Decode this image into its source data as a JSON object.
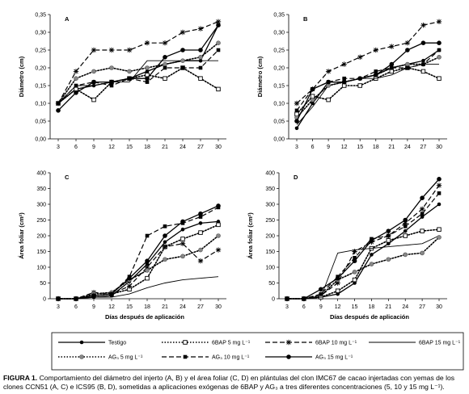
{
  "colors": {
    "ink": "#000000",
    "legend_border": "#000000",
    "background": "#ffffff"
  },
  "chart_data": [
    {
      "panel": "A",
      "type": "line",
      "xlabel": "",
      "ylabel": "Diámetro (cm)",
      "ylim": [
        0,
        0.35
      ],
      "yticks": [
        "0,00",
        "0,05",
        "0,10",
        "0,15",
        "0,20",
        "0,25",
        "0,30",
        "0,35"
      ],
      "categories": [
        "3",
        "6",
        "9",
        "12",
        "15",
        "18",
        "21",
        "24",
        "27",
        "30"
      ],
      "grid": false,
      "series": [
        {
          "name": "Testigo",
          "style": "solid-dot",
          "values": [
            0.1,
            0.14,
            0.15,
            0.16,
            0.17,
            0.19,
            0.21,
            0.22,
            0.22,
            0.32
          ]
        },
        {
          "name": "6BAP 5 mg L⁻¹",
          "style": "dotted-opensquare",
          "values": [
            0.1,
            0.14,
            0.11,
            0.16,
            0.17,
            0.18,
            0.17,
            0.2,
            0.17,
            0.14
          ]
        },
        {
          "name": "6BAP 10 mg L⁻¹",
          "style": "dashed-star",
          "values": [
            0.1,
            0.19,
            0.25,
            0.25,
            0.25,
            0.27,
            0.27,
            0.3,
            0.31,
            0.33
          ]
        },
        {
          "name": "6BAP 15 mg L⁻¹",
          "style": "thin-solid",
          "values": [
            0.1,
            0.15,
            0.15,
            0.16,
            0.16,
            0.22,
            0.22,
            0.22,
            0.22,
            0.22
          ]
        },
        {
          "name": "AG3 5 mg L⁻¹",
          "style": "dotted-graydot",
          "values": [
            0.1,
            0.17,
            0.19,
            0.2,
            0.19,
            0.2,
            0.21,
            0.22,
            0.23,
            0.27
          ]
        },
        {
          "name": "AG3 10 mg L⁻¹",
          "style": "dashed-square",
          "values": [
            0.1,
            0.15,
            0.16,
            0.15,
            0.17,
            0.16,
            0.2,
            0.2,
            0.2,
            0.25
          ]
        },
        {
          "name": "AG3 15 mg L⁻¹",
          "style": "solid-bigdot",
          "values": [
            0.08,
            0.13,
            0.16,
            0.16,
            0.17,
            0.17,
            0.23,
            0.25,
            0.25,
            0.32
          ]
        }
      ]
    },
    {
      "panel": "B",
      "type": "line",
      "xlabel": "",
      "ylabel": "Diámetro (cm)",
      "ylim": [
        0,
        0.35
      ],
      "yticks": [
        "0,00",
        "0,05",
        "0,10",
        "0,15",
        "0,20",
        "0,25",
        "0,30",
        "0,35"
      ],
      "categories": [
        "3",
        "6",
        "9",
        "12",
        "15",
        "18",
        "21",
        "24",
        "27",
        "30"
      ],
      "grid": false,
      "series": [
        {
          "name": "Testigo",
          "style": "solid-dot",
          "values": [
            0.03,
            0.1,
            0.16,
            0.16,
            0.17,
            0.18,
            0.2,
            0.21,
            0.22,
            0.25
          ]
        },
        {
          "name": "6BAP 5 mg L⁻¹",
          "style": "dotted-opensquare",
          "values": [
            0.07,
            0.12,
            0.11,
            0.15,
            0.15,
            0.17,
            0.19,
            0.2,
            0.19,
            0.17
          ]
        },
        {
          "name": "6BAP 10 mg L⁻¹",
          "style": "dashed-star",
          "values": [
            0.1,
            0.14,
            0.19,
            0.21,
            0.23,
            0.25,
            0.26,
            0.27,
            0.32,
            0.33
          ]
        },
        {
          "name": "6BAP 15 mg L⁻¹",
          "style": "thin-solid",
          "values": [
            0.04,
            0.09,
            0.15,
            0.16,
            0.17,
            0.17,
            0.18,
            0.2,
            0.21,
            0.21
          ]
        },
        {
          "name": "AG3 5 mg L⁻¹",
          "style": "dotted-graydot",
          "values": [
            0.06,
            0.11,
            0.15,
            0.16,
            0.17,
            0.18,
            0.2,
            0.21,
            0.21,
            0.23
          ]
        },
        {
          "name": "AG3 10 mg L⁻¹",
          "style": "dashed-square",
          "values": [
            0.08,
            0.14,
            0.16,
            0.17,
            0.17,
            0.19,
            0.2,
            0.2,
            0.21,
            0.25
          ]
        },
        {
          "name": "AG3 15 mg L⁻¹",
          "style": "solid-bigdot",
          "values": [
            0.05,
            0.14,
            0.16,
            0.16,
            0.17,
            0.18,
            0.21,
            0.25,
            0.27,
            0.27
          ]
        }
      ]
    },
    {
      "panel": "C",
      "type": "line",
      "xlabel": "Días después de aplicación",
      "ylabel": "Área foliar (cm²)",
      "ylim": [
        0,
        400
      ],
      "yticks": [
        "0",
        "50",
        "100",
        "150",
        "200",
        "250",
        "300",
        "350",
        "400"
      ],
      "categories": [
        "3",
        "6",
        "9",
        "12",
        "15",
        "18",
        "21",
        "24",
        "27",
        "30"
      ],
      "grid": false,
      "series": [
        {
          "name": "Testigo",
          "style": "solid-dot",
          "values": [
            0,
            0,
            5,
            10,
            55,
            110,
            180,
            220,
            240,
            245
          ]
        },
        {
          "name": "6BAP 5 mg L⁻¹",
          "style": "dotted-opensquare",
          "values": [
            0,
            0,
            10,
            15,
            30,
            65,
            165,
            190,
            210,
            235
          ]
        },
        {
          "name": "6BAP 10 mg L⁻¹",
          "style": "dashed-star",
          "values": [
            0,
            0,
            20,
            15,
            40,
            100,
            165,
            175,
            120,
            155
          ]
        },
        {
          "name": "6BAP 15 mg L⁻¹",
          "style": "thin-solid",
          "values": [
            0,
            0,
            5,
            5,
            15,
            35,
            50,
            60,
            65,
            70
          ]
        },
        {
          "name": "AG3 5 mg L⁻¹",
          "style": "dotted-graydot",
          "values": [
            0,
            0,
            15,
            20,
            60,
            90,
            125,
            135,
            155,
            200
          ]
        },
        {
          "name": "AG3 10 mg L⁻¹",
          "style": "dashed-square",
          "values": [
            0,
            0,
            10,
            15,
            70,
            200,
            230,
            240,
            260,
            290
          ]
        },
        {
          "name": "AG3 15 mg L⁻¹",
          "style": "solid-bigdot",
          "values": [
            0,
            0,
            10,
            15,
            65,
            120,
            200,
            245,
            270,
            295
          ]
        }
      ]
    },
    {
      "panel": "D",
      "type": "line",
      "xlabel": "Días después de aplicación",
      "ylabel": "Área foliar (cm²)",
      "ylim": [
        0,
        400
      ],
      "yticks": [
        "0",
        "50",
        "100",
        "150",
        "200",
        "250",
        "300",
        "350",
        "400"
      ],
      "categories": [
        "3",
        "6",
        "9",
        "12",
        "15",
        "18",
        "21",
        "24",
        "27",
        "30"
      ],
      "grid": false,
      "series": [
        {
          "name": "Testigo",
          "style": "solid-dot",
          "values": [
            0,
            0,
            5,
            15,
            50,
            140,
            175,
            215,
            260,
            300
          ]
        },
        {
          "name": "6BAP 5 mg L⁻¹",
          "style": "dotted-opensquare",
          "values": [
            0,
            0,
            5,
            25,
            60,
            160,
            185,
            200,
            215,
            220
          ]
        },
        {
          "name": "6BAP 10 mg L⁻¹",
          "style": "dashed-star",
          "values": [
            0,
            0,
            10,
            50,
            150,
            180,
            200,
            240,
            285,
            360
          ]
        },
        {
          "name": "6BAP 15 mg L⁻¹",
          "style": "thin-solid",
          "values": [
            0,
            0,
            5,
            145,
            155,
            160,
            165,
            170,
            175,
            200
          ]
        },
        {
          "name": "AG3 5 mg L⁻¹",
          "style": "dotted-graydot",
          "values": [
            0,
            0,
            10,
            60,
            85,
            110,
            125,
            140,
            145,
            195
          ]
        },
        {
          "name": "AG3 10 mg L⁻¹",
          "style": "dashed-square",
          "values": [
            0,
            0,
            15,
            70,
            130,
            190,
            200,
            230,
            270,
            335
          ]
        },
        {
          "name": "AG3 15 mg L⁻¹",
          "style": "solid-bigdot",
          "values": [
            0,
            0,
            30,
            65,
            120,
            185,
            215,
            250,
            320,
            380
          ]
        }
      ]
    }
  ],
  "legend": [
    {
      "label": "Testigo",
      "style": "solid-dot"
    },
    {
      "label": "6BAP 5 mg L⁻¹",
      "style": "dotted-opensquare"
    },
    {
      "label": "6BAP 10 mg L⁻¹",
      "style": "dashed-star"
    },
    {
      "label": "6BAP 15 mg L⁻¹",
      "style": "thin-solid"
    },
    {
      "label": "AG₃ 5 mg L⁻¹",
      "style": "dotted-graydot"
    },
    {
      "label": "AG₃ 10 mg L⁻¹",
      "style": "dashed-square"
    },
    {
      "label": "AG₃ 15 mg L⁻¹",
      "style": "solid-bigdot"
    }
  ],
  "caption": {
    "label": "FIGURA 1.",
    "text": " Comportamiento del diámetro del injerto (A, B) y el área foliar (C, D) en plántulas del clon IMC67 de cacao injertadas con yemas de los clones CCN51 (A, C) e ICS95 (B, D), sometidas a aplicaciones exógenas de 6BAP y AG₃ a tres diferentes concentraciones (5, 10 y 15 mg L⁻¹)."
  }
}
